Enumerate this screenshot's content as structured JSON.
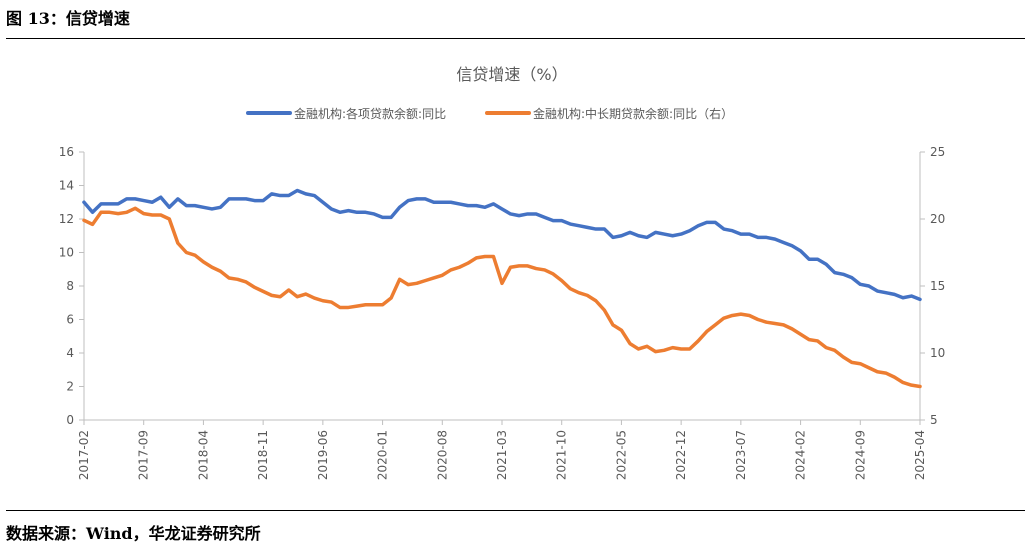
{
  "header": {
    "figure_title": "图 13：信贷增速"
  },
  "footer": {
    "source": "数据来源：Wind，华龙证券研究所"
  },
  "chart_data": {
    "type": "line",
    "title": "信贷增速（%）",
    "legend_position": "top",
    "grid": false,
    "x_tick_labels": [
      "2017-02",
      "2017-09",
      "2018-04",
      "2018-11",
      "2019-06",
      "2020-01",
      "2020-08",
      "2021-03",
      "2021-10",
      "2022-05",
      "2022-12",
      "2023-07",
      "2024-02",
      "2024-09",
      "2025-04"
    ],
    "y_left": {
      "lim": [
        0,
        16
      ],
      "ticks": [
        0,
        2,
        4,
        6,
        8,
        10,
        12,
        14,
        16
      ]
    },
    "y_right": {
      "lim": [
        5,
        25
      ],
      "ticks": [
        5,
        10,
        15,
        20,
        25
      ]
    },
    "series": [
      {
        "name": "金融机构:各项贷款余额:同比",
        "axis": "left",
        "color": "#4472C4",
        "points": [
          [
            "2017-02",
            13.0
          ],
          [
            "2017-03",
            12.4
          ],
          [
            "2017-04",
            12.9
          ],
          [
            "2017-05",
            12.9
          ],
          [
            "2017-06",
            12.9
          ],
          [
            "2017-07",
            13.2
          ],
          [
            "2017-08",
            13.2
          ],
          [
            "2017-09",
            13.1
          ],
          [
            "2017-10",
            13.0
          ],
          [
            "2017-11",
            13.3
          ],
          [
            "2017-12",
            12.7
          ],
          [
            "2018-01",
            13.2
          ],
          [
            "2018-02",
            12.8
          ],
          [
            "2018-03",
            12.8
          ],
          [
            "2018-04",
            12.7
          ],
          [
            "2018-05",
            12.6
          ],
          [
            "2018-06",
            12.7
          ],
          [
            "2018-07",
            13.2
          ],
          [
            "2018-08",
            13.2
          ],
          [
            "2018-09",
            13.2
          ],
          [
            "2018-10",
            13.1
          ],
          [
            "2018-11",
            13.1
          ],
          [
            "2018-12",
            13.5
          ],
          [
            "2019-01",
            13.4
          ],
          [
            "2019-02",
            13.4
          ],
          [
            "2019-03",
            13.7
          ],
          [
            "2019-04",
            13.5
          ],
          [
            "2019-05",
            13.4
          ],
          [
            "2019-06",
            13.0
          ],
          [
            "2019-07",
            12.6
          ],
          [
            "2019-08",
            12.4
          ],
          [
            "2019-09",
            12.5
          ],
          [
            "2019-10",
            12.4
          ],
          [
            "2019-11",
            12.4
          ],
          [
            "2019-12",
            12.3
          ],
          [
            "2020-01",
            12.1
          ],
          [
            "2020-02",
            12.1
          ],
          [
            "2020-03",
            12.7
          ],
          [
            "2020-04",
            13.1
          ],
          [
            "2020-05",
            13.2
          ],
          [
            "2020-06",
            13.2
          ],
          [
            "2020-07",
            13.0
          ],
          [
            "2020-08",
            13.0
          ],
          [
            "2020-09",
            13.0
          ],
          [
            "2020-10",
            12.9
          ],
          [
            "2020-11",
            12.8
          ],
          [
            "2020-12",
            12.8
          ],
          [
            "2021-01",
            12.7
          ],
          [
            "2021-02",
            12.9
          ],
          [
            "2021-03",
            12.6
          ],
          [
            "2021-04",
            12.3
          ],
          [
            "2021-05",
            12.2
          ],
          [
            "2021-06",
            12.3
          ],
          [
            "2021-07",
            12.3
          ],
          [
            "2021-08",
            12.1
          ],
          [
            "2021-09",
            11.9
          ],
          [
            "2021-10",
            11.9
          ],
          [
            "2021-11",
            11.7
          ],
          [
            "2021-12",
            11.6
          ],
          [
            "2021-13",
            11.5
          ],
          [
            "2022-02",
            11.4
          ],
          [
            "2022-03",
            11.4
          ],
          [
            "2022-04",
            10.9
          ],
          [
            "2022-05",
            11.0
          ],
          [
            "2022-06",
            11.2
          ],
          [
            "2022-07",
            11.0
          ],
          [
            "2022-08",
            10.9
          ],
          [
            "2022-09",
            11.2
          ],
          [
            "2022-10",
            11.1
          ],
          [
            "2022-11",
            11.0
          ],
          [
            "2022-12",
            11.1
          ],
          [
            "2023-01",
            11.3
          ],
          [
            "2023-02",
            11.6
          ],
          [
            "2023-03",
            11.8
          ],
          [
            "2023-04",
            11.8
          ],
          [
            "2023-05",
            11.4
          ],
          [
            "2023-06",
            11.3
          ],
          [
            "2023-07",
            11.1
          ],
          [
            "2023-08",
            11.1
          ],
          [
            "2023-09",
            10.9
          ],
          [
            "2023-10",
            10.9
          ],
          [
            "2023-11",
            10.8
          ],
          [
            "2023-12",
            10.6
          ],
          [
            "2024-01",
            10.4
          ],
          [
            "2024-02",
            10.1
          ],
          [
            "2024-03",
            9.6
          ],
          [
            "2024-04",
            9.6
          ],
          [
            "2024-05",
            9.3
          ],
          [
            "2024-06",
            8.8
          ],
          [
            "2024-07",
            8.7
          ],
          [
            "2024-08",
            8.5
          ],
          [
            "2024-09",
            8.1
          ],
          [
            "2024-10",
            8.0
          ],
          [
            "2024-11",
            7.7
          ],
          [
            "2024-12",
            7.6
          ],
          [
            "2025-01",
            7.5
          ],
          [
            "2025-02",
            7.3
          ],
          [
            "2025-03",
            7.4
          ],
          [
            "2025-04",
            7.2
          ]
        ]
      },
      {
        "name": "金融机构:中长期贷款余额:同比（右）",
        "axis": "right",
        "color": "#ED7D31",
        "points": [
          [
            "2017-02",
            19.9
          ],
          [
            "2017-03",
            19.6
          ],
          [
            "2017-04",
            20.5
          ],
          [
            "2017-05",
            20.5
          ],
          [
            "2017-06",
            20.4
          ],
          [
            "2017-07",
            20.5
          ],
          [
            "2017-08",
            20.8
          ],
          [
            "2017-09",
            20.4
          ],
          [
            "2017-10",
            20.3
          ],
          [
            "2017-11",
            20.3
          ],
          [
            "2017-12",
            20.0
          ],
          [
            "2018-01",
            18.2
          ],
          [
            "2018-02",
            17.5
          ],
          [
            "2018-03",
            17.3
          ],
          [
            "2018-04",
            16.8
          ],
          [
            "2018-05",
            16.4
          ],
          [
            "2018-06",
            16.1
          ],
          [
            "2018-07",
            15.6
          ],
          [
            "2018-08",
            15.5
          ],
          [
            "2018-09",
            15.3
          ],
          [
            "2018-10",
            14.9
          ],
          [
            "2018-11",
            14.6
          ],
          [
            "2018-12",
            14.3
          ],
          [
            "2019-01",
            14.2
          ],
          [
            "2019-02",
            14.7
          ],
          [
            "2019-03",
            14.2
          ],
          [
            "2019-04",
            14.4
          ],
          [
            "2019-05",
            14.1
          ],
          [
            "2019-06",
            13.9
          ],
          [
            "2019-07",
            13.8
          ],
          [
            "2019-08",
            13.4
          ],
          [
            "2019-09",
            13.4
          ],
          [
            "2019-10",
            13.5
          ],
          [
            "2019-11",
            13.6
          ],
          [
            "2019-12",
            13.6
          ],
          [
            "2020-01",
            13.6
          ],
          [
            "2020-02",
            14.1
          ],
          [
            "2020-03",
            15.5
          ],
          [
            "2020-04",
            15.1
          ],
          [
            "2020-05",
            15.2
          ],
          [
            "2020-06",
            15.4
          ],
          [
            "2020-07",
            15.6
          ],
          [
            "2020-08",
            15.8
          ],
          [
            "2020-09",
            16.2
          ],
          [
            "2020-10",
            16.4
          ],
          [
            "2020-11",
            16.7
          ],
          [
            "2020-12",
            17.1
          ],
          [
            "2021-01",
            17.2
          ],
          [
            "2021-02",
            17.2
          ],
          [
            "2021-03",
            15.2
          ],
          [
            "2021-04",
            16.4
          ],
          [
            "2021-05",
            16.5
          ],
          [
            "2021-06",
            16.5
          ],
          [
            "2021-07",
            16.3
          ],
          [
            "2021-08",
            16.2
          ],
          [
            "2021-09",
            15.9
          ],
          [
            "2021-10",
            15.4
          ],
          [
            "2021-11",
            14.8
          ],
          [
            "2021-12",
            14.5
          ],
          [
            "2021-13",
            14.3
          ],
          [
            "2022-02",
            13.9
          ],
          [
            "2022-03",
            13.2
          ],
          [
            "2022-04",
            12.1
          ],
          [
            "2022-05",
            11.7
          ],
          [
            "2022-06",
            10.7
          ],
          [
            "2022-07",
            10.3
          ],
          [
            "2022-08",
            10.5
          ],
          [
            "2022-09",
            10.1
          ],
          [
            "2022-10",
            10.2
          ],
          [
            "2022-11",
            10.4
          ],
          [
            "2022-12",
            10.3
          ],
          [
            "2023-01",
            10.3
          ],
          [
            "2023-02",
            10.9
          ],
          [
            "2023-03",
            11.6
          ],
          [
            "2023-04",
            12.1
          ],
          [
            "2023-05",
            12.6
          ],
          [
            "2023-06",
            12.8
          ],
          [
            "2023-07",
            12.9
          ],
          [
            "2023-08",
            12.8
          ],
          [
            "2023-09",
            12.5
          ],
          [
            "2023-10",
            12.3
          ],
          [
            "2023-11",
            12.2
          ],
          [
            "2023-12",
            12.1
          ],
          [
            "2024-01",
            11.8
          ],
          [
            "2024-02",
            11.4
          ],
          [
            "2024-03",
            11.0
          ],
          [
            "2024-04",
            10.9
          ],
          [
            "2024-05",
            10.4
          ],
          [
            "2024-06",
            10.2
          ],
          [
            "2024-07",
            9.7
          ],
          [
            "2024-08",
            9.3
          ],
          [
            "2024-09",
            9.2
          ],
          [
            "2024-10",
            8.9
          ],
          [
            "2024-11",
            8.6
          ],
          [
            "2024-12",
            8.5
          ],
          [
            "2025-01",
            8.2
          ],
          [
            "2025-02",
            7.8
          ],
          [
            "2025-03",
            7.6
          ],
          [
            "2025-04",
            7.5
          ]
        ]
      }
    ]
  }
}
